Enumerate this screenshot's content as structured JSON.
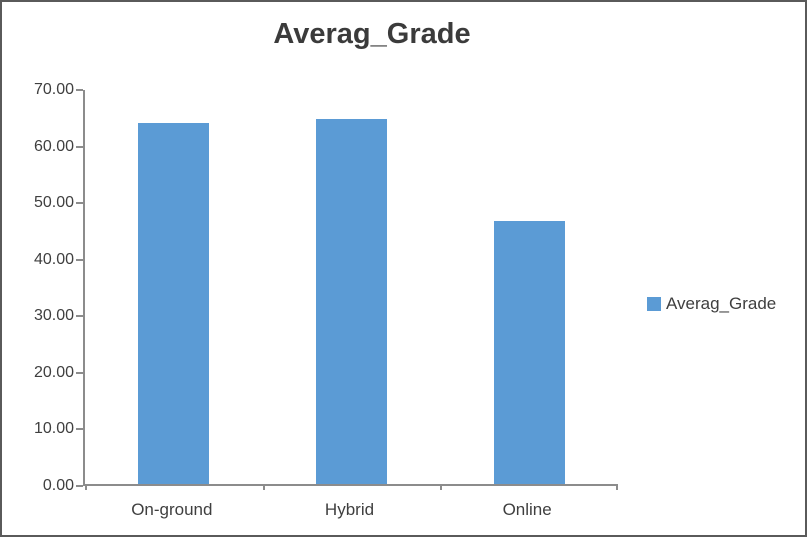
{
  "window": {
    "background": "#ffffff",
    "frame_border_color": "#5a5a5a"
  },
  "chart_data": {
    "type": "bar",
    "title": "Averag_Grade",
    "categories": [
      "On-ground",
      "Hybrid",
      "Online"
    ],
    "series": [
      {
        "name": "Averag_Grade",
        "color": "#5b9bd5",
        "values": [
          63.9,
          64.6,
          46.5
        ]
      }
    ],
    "xlabel": "",
    "ylabel": "",
    "ylim": [
      0,
      70
    ],
    "y_tick_step": 10,
    "y_tick_labels": [
      "0.00",
      "10.00",
      "20.00",
      "30.00",
      "40.00",
      "50.00",
      "60.00",
      "70.00"
    ],
    "grid": false,
    "legend_position": "right",
    "legend_entries": [
      "Averag_Grade"
    ]
  },
  "colors": {
    "bar_fill": "#5b9bd5",
    "axis_line": "#8c8c8c",
    "text": "#3f3f3f",
    "title_text": "#3b3b3b"
  }
}
